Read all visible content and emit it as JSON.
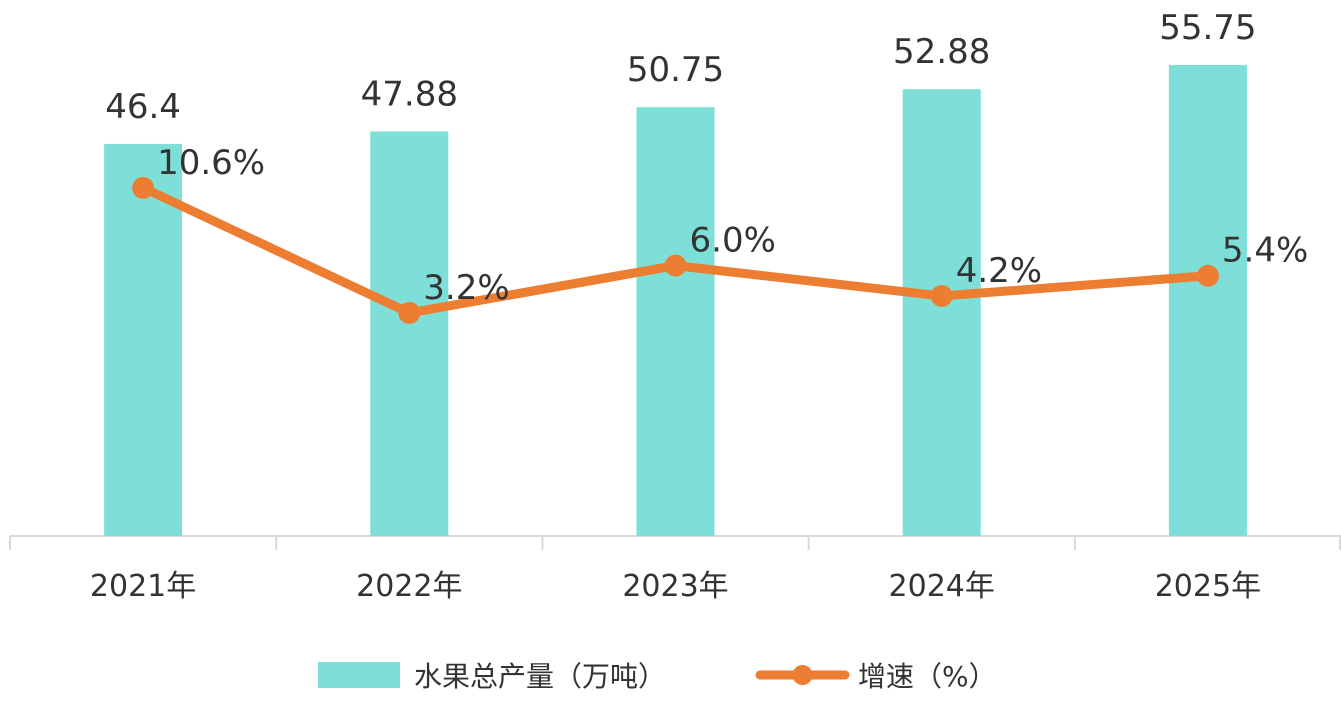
{
  "chart_data": {
    "type": "bar",
    "categories": [
      "2021年",
      "2022年",
      "2023年",
      "2024年",
      "2025年"
    ],
    "series": [
      {
        "name": "水果总产量（万吨）",
        "type": "bar",
        "axis": "left",
        "values": [
          46.4,
          47.88,
          50.75,
          52.88,
          55.75
        ],
        "labels": [
          "46.4",
          "47.88",
          "50.75",
          "52.88",
          "55.75"
        ]
      },
      {
        "name": "增速（%）",
        "type": "line",
        "axis": "right",
        "values": [
          10.6,
          3.2,
          6.0,
          4.2,
          5.4
        ],
        "labels": [
          "10.6%",
          "3.2%",
          "6.0%",
          "4.2%",
          "5.4%"
        ]
      }
    ],
    "colors": {
      "bar": "#7EDFD8",
      "line": "#ED7D31",
      "axis": "#D9D9D9",
      "text": "#333333"
    },
    "ylim_left": [
      0,
      60
    ],
    "ylim_right": [
      -10,
      20
    ],
    "grid": false,
    "legend_position": "bottom"
  }
}
